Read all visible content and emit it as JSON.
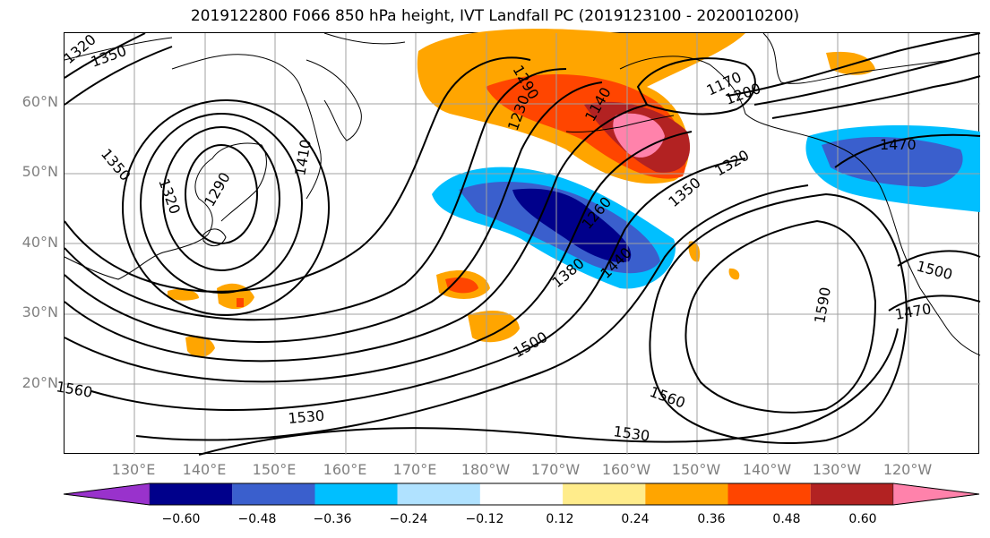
{
  "title": "2019122800 F066 850 hPa height, IVT Landfall PC (2019123100 - 2020010200)",
  "lat_labels": [
    "60°N",
    "50°N",
    "40°N",
    "30°N",
    "20°N"
  ],
  "lon_labels": [
    "130°E",
    "140°E",
    "150°E",
    "160°E",
    "170°E",
    "180°W",
    "170°W",
    "160°W",
    "150°W",
    "140°W",
    "130°W",
    "120°W"
  ],
  "contour_labels": [
    "1320",
    "1350",
    "1350",
    "1320",
    "1290",
    "1410",
    "1290",
    "1230",
    "1140",
    "1170",
    "1200",
    "1320",
    "1350",
    "1260",
    "1380",
    "1440",
    "1470",
    "1500",
    "1470",
    "1500",
    "1590",
    "1560",
    "1560",
    "1530",
    "1530"
  ],
  "colorbar": {
    "ticks": [
      "−0.60",
      "−0.48",
      "−0.36",
      "−0.24",
      "−0.12",
      "0.12",
      "0.24",
      "0.36",
      "0.48",
      "0.60"
    ],
    "colors": [
      "#9932cc",
      "#00008b",
      "#3a5fcd",
      "#00bfff",
      "#b0e2ff",
      "#ffffff",
      "#ffec8b",
      "#ffa500",
      "#ff4500",
      "#b22222",
      "#ff82ab"
    ]
  }
}
